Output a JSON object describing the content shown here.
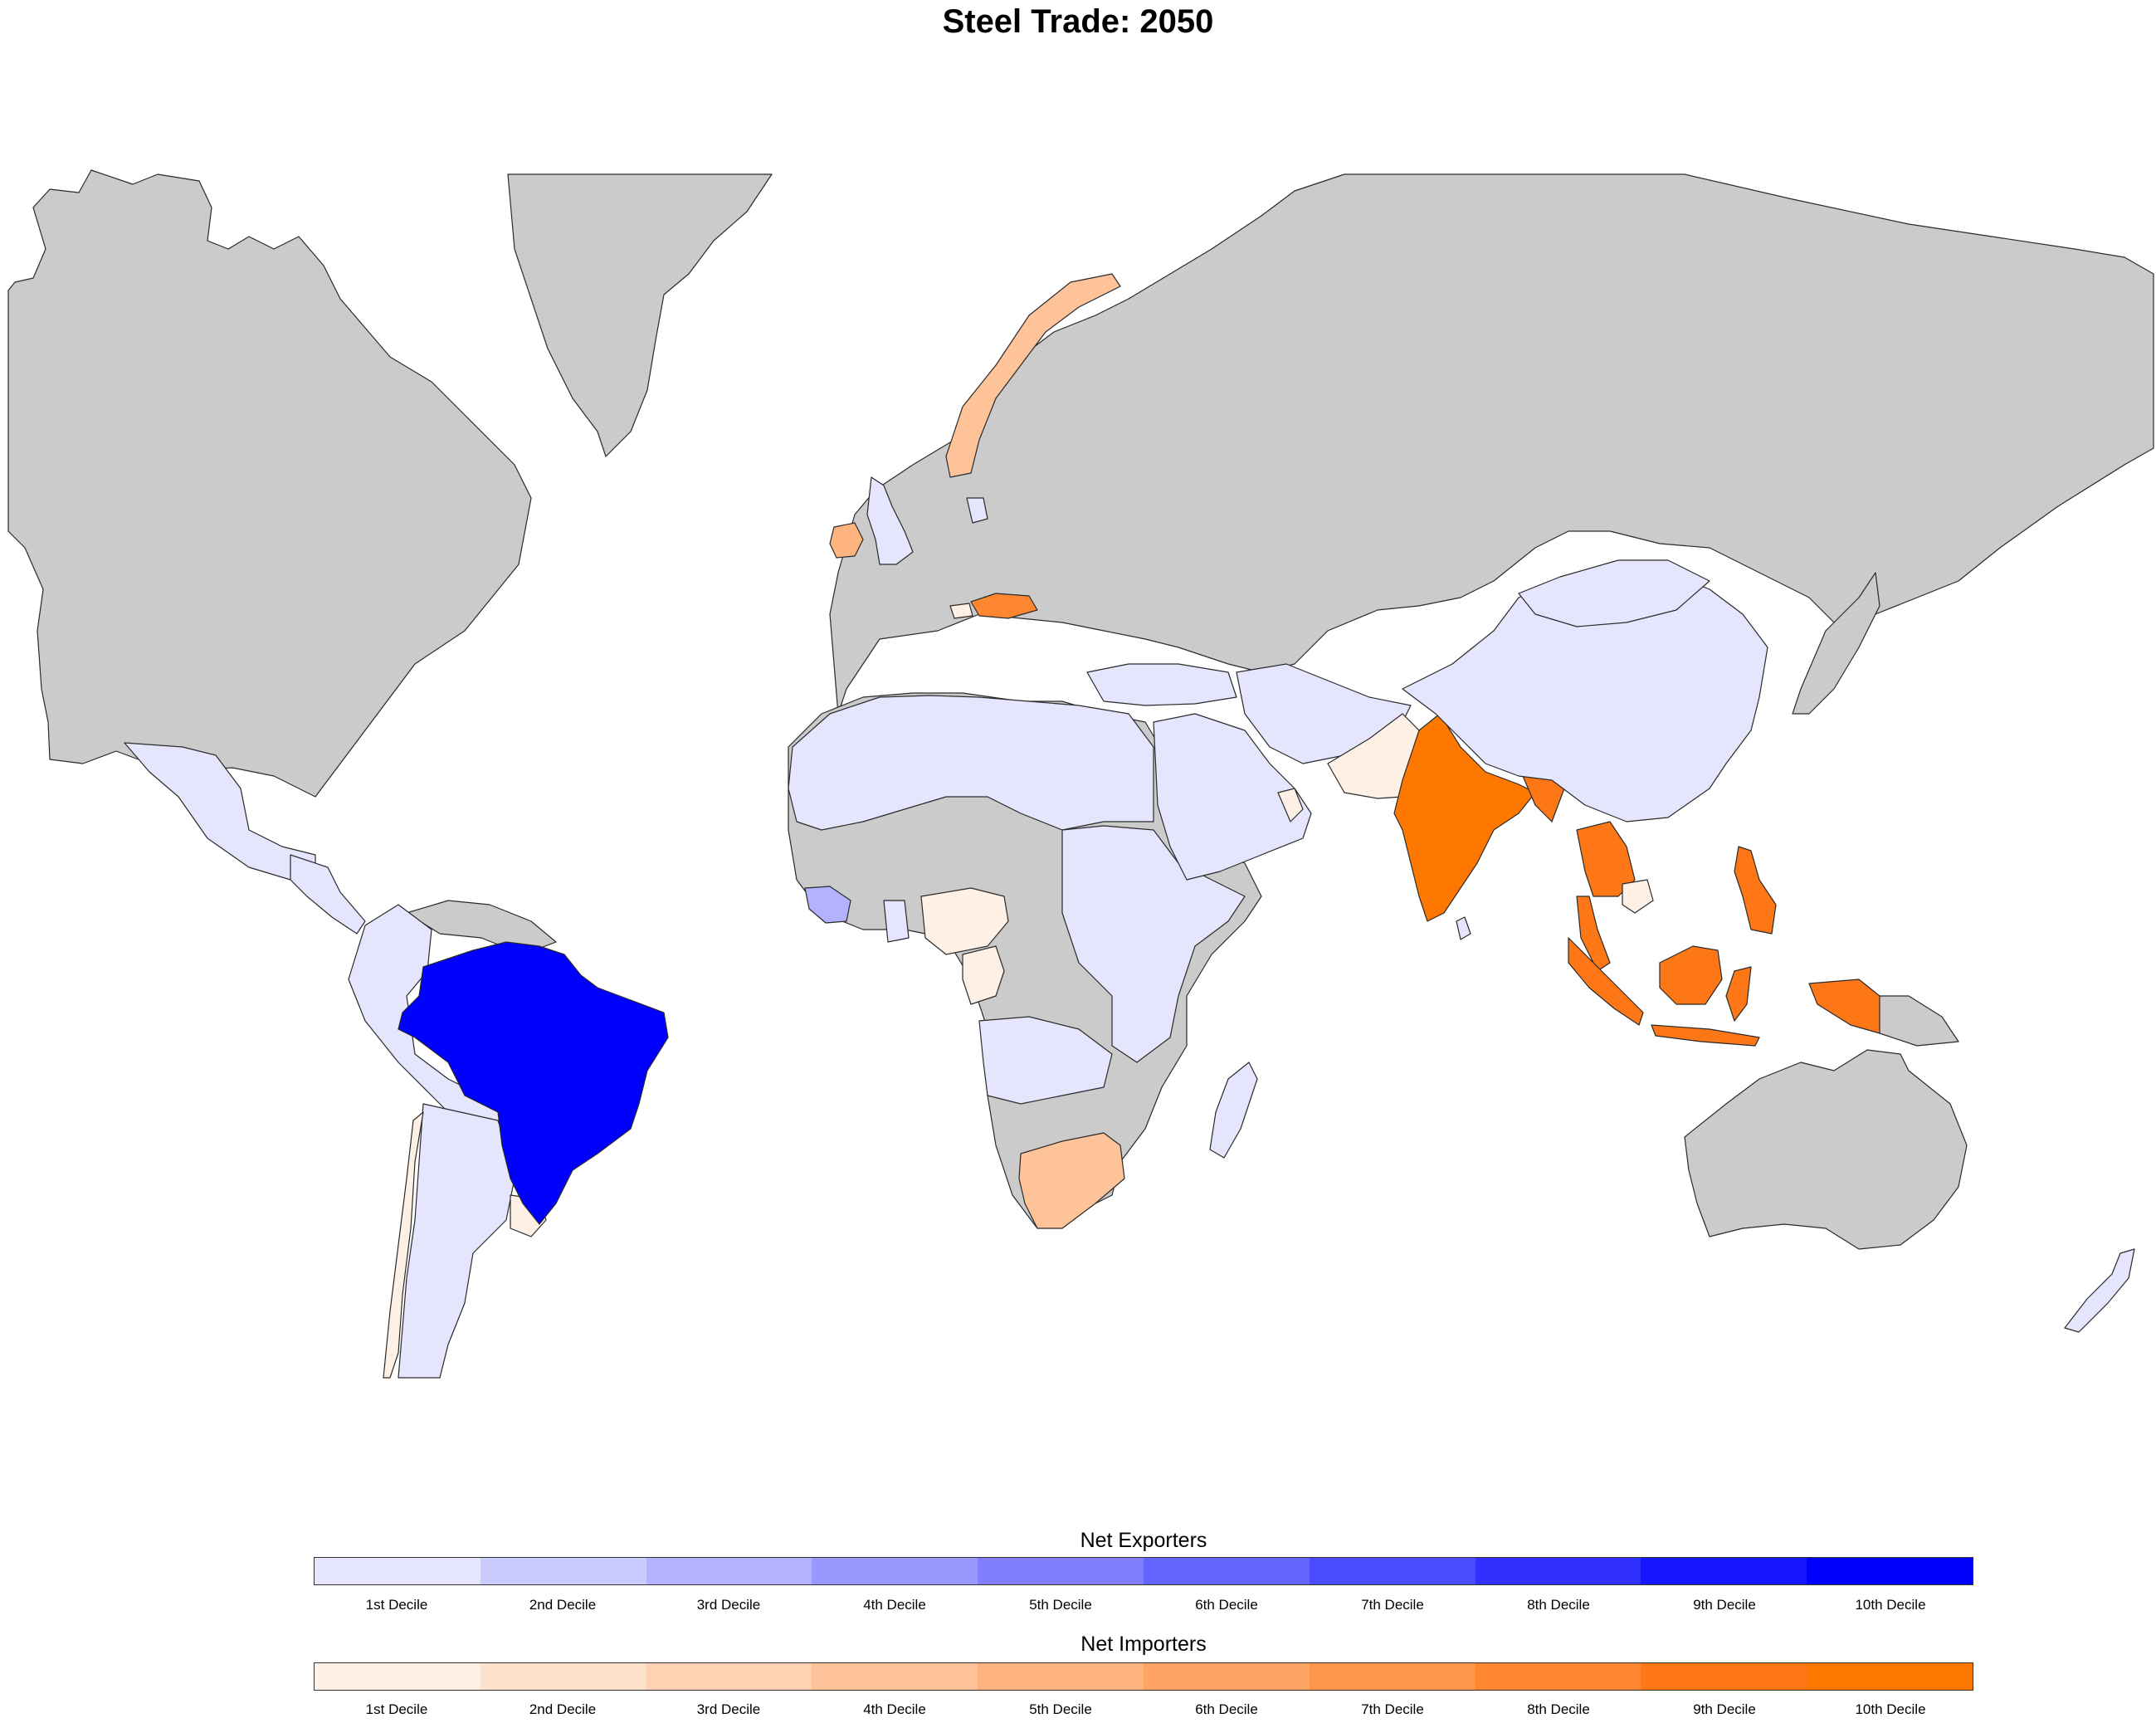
{
  "title": "Steel Trade: 2050",
  "colors": {
    "no_data": "#cbcbcb",
    "borders": "#2a2a2a",
    "exporters": [
      "#e5e5fe",
      "#cbcbfe",
      "#b2b2fe",
      "#9898fe",
      "#7e7efe",
      "#6464fe",
      "#4a4afe",
      "#3030fe",
      "#1616fe",
      "#0000fe"
    ],
    "importers": [
      "#fef0e5",
      "#fee1cb",
      "#fed2b2",
      "#fec398",
      "#feb47e",
      "#fea464",
      "#fe954a",
      "#fe8630",
      "#fe7716",
      "#fe7800"
    ]
  },
  "legend": {
    "exporters": {
      "title": "Net Exporters",
      "labels": [
        "1st Decile",
        "2nd Decile",
        "3rd Decile",
        "4th Decile",
        "5th Decile",
        "6th Decile",
        "7th Decile",
        "8th Decile",
        "9th Decile",
        "10th Decile"
      ]
    },
    "importers": {
      "title": "Net Importers",
      "labels": [
        "1st Decile",
        "2nd Decile",
        "3rd Decile",
        "4th Decile",
        "5th Decile",
        "6th Decile",
        "7th Decile",
        "8th Decile",
        "9th Decile",
        "10th Decile"
      ]
    }
  },
  "regions": [
    {
      "name": "Brazil",
      "group": "exporters",
      "decile": 10
    },
    {
      "name": "Guinea",
      "group": "exporters",
      "decile": 3
    },
    {
      "name": "China",
      "group": "exporters",
      "decile": 1
    },
    {
      "name": "Mongolia",
      "group": "exporters",
      "decile": 1
    },
    {
      "name": "Mexico",
      "group": "exporters",
      "decile": 1
    },
    {
      "name": "Central America",
      "group": "exporters",
      "decile": 1
    },
    {
      "name": "Venezuela-Colombia-Peru-Bolivia",
      "group": "exporters",
      "decile": 1
    },
    {
      "name": "Argentina-Paraguay",
      "group": "exporters",
      "decile": 1
    },
    {
      "name": "United Kingdom",
      "group": "exporters",
      "decile": 1
    },
    {
      "name": "Denmark",
      "group": "exporters",
      "decile": 1
    },
    {
      "name": "North Africa",
      "group": "exporters",
      "decile": 1
    },
    {
      "name": "East Africa",
      "group": "exporters",
      "decile": 1
    },
    {
      "name": "Southern Central Africa",
      "group": "exporters",
      "decile": 1
    },
    {
      "name": "Middle East",
      "group": "exporters",
      "decile": 1
    },
    {
      "name": "Iran-Afghanistan",
      "group": "exporters",
      "decile": 1
    },
    {
      "name": "Turkey",
      "group": "exporters",
      "decile": 1
    },
    {
      "name": "Madagascar",
      "group": "exporters",
      "decile": 1
    },
    {
      "name": "Sri Lanka",
      "group": "exporters",
      "decile": 1
    },
    {
      "name": "New Zealand",
      "group": "exporters",
      "decile": 1
    },
    {
      "name": "India",
      "group": "importers",
      "decile": 10
    },
    {
      "name": "Bangladesh",
      "group": "importers",
      "decile": 9
    },
    {
      "name": "Thailand",
      "group": "importers",
      "decile": 9
    },
    {
      "name": "Indonesia",
      "group": "importers",
      "decile": 9
    },
    {
      "name": "Philippines",
      "group": "importers",
      "decile": 9
    },
    {
      "name": "Austria",
      "group": "importers",
      "decile": 8
    },
    {
      "name": "Norway",
      "group": "importers",
      "decile": 4
    },
    {
      "name": "Ireland",
      "group": "importers",
      "decile": 5
    },
    {
      "name": "South Africa",
      "group": "importers",
      "decile": 4
    },
    {
      "name": "Pakistan",
      "group": "importers",
      "decile": 1
    },
    {
      "name": "Nigeria",
      "group": "importers",
      "decile": 1
    },
    {
      "name": "Cameroon-Gabon",
      "group": "importers",
      "decile": 1
    },
    {
      "name": "Chile",
      "group": "importers",
      "decile": 1
    },
    {
      "name": "Uruguay",
      "group": "importers",
      "decile": 1
    },
    {
      "name": "Cambodia",
      "group": "importers",
      "decile": 1
    },
    {
      "name": "Oman",
      "group": "importers",
      "decile": 1
    },
    {
      "name": "Switzerland",
      "group": "importers",
      "decile": 1
    }
  ]
}
